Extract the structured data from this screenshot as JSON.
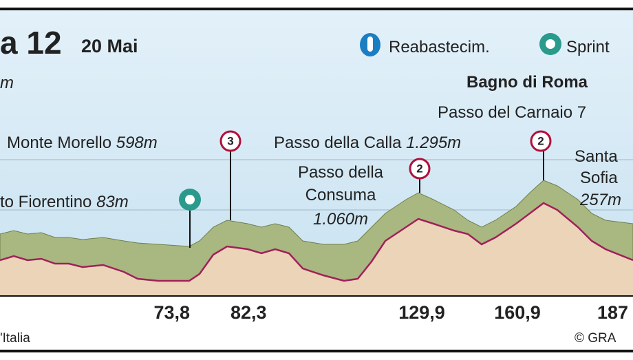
{
  "header": {
    "title": "a 12",
    "date": "20 Mai",
    "left_note": "m"
  },
  "legend": [
    "Reabastecim.",
    "Sprint"
  ],
  "places": [
    {
      "name": "to Fiorentino",
      "elevation": "83m"
    },
    {
      "name": "Monte Morello",
      "elevation": "598m",
      "badge": "3"
    },
    {
      "name_lines": [
        "Passo della",
        "Consuma"
      ],
      "elevation": "1.060m",
      "badge": "2"
    },
    {
      "name": "Passo della Calla",
      "elevation": "1.295m",
      "badge": "2"
    },
    {
      "name_lines": [
        "Santa",
        "Sofia"
      ],
      "elevation": "257m"
    },
    {
      "name": "Bagno di Roma"
    },
    {
      "name": "Passo del Carnaio 7"
    }
  ],
  "km_markers": [
    "73,8",
    "82,3",
    "129,9",
    "160,9",
    "187"
  ],
  "footer": {
    "left": "'Italia",
    "right": "© GRA"
  }
}
